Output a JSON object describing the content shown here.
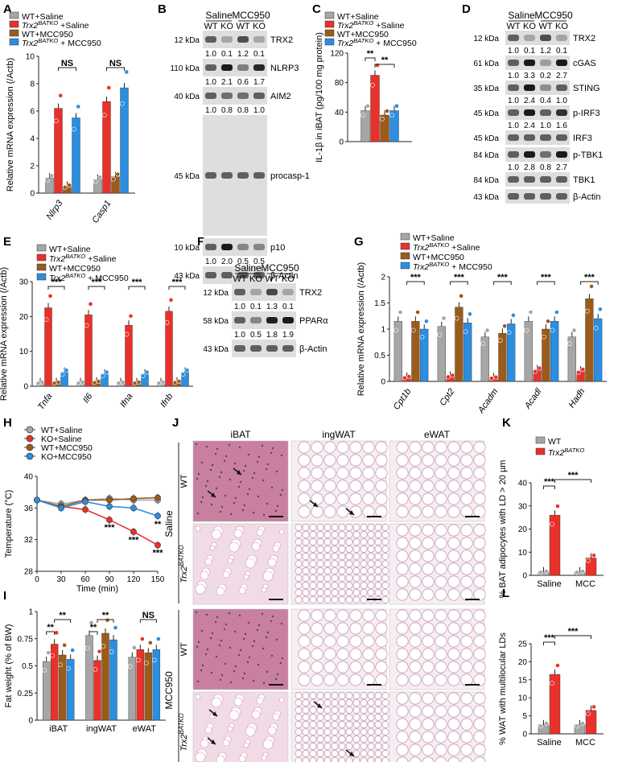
{
  "panel_letters": [
    "A",
    "B",
    "C",
    "D",
    "E",
    "F",
    "G",
    "H",
    "I",
    "J",
    "K",
    "L"
  ],
  "colors": {
    "wt_saline": "#a6a6a6",
    "ko_saline": "#e8312a",
    "wt_mcc": "#9a5b1c",
    "ko_mcc": "#2b8ee0",
    "he_pink": "#e9b4cf",
    "adipose": "#ecd6e4"
  },
  "legend4": [
    {
      "label": "WT+Saline",
      "color": "#a6a6a6"
    },
    {
      "label": "Trx2BATKO +Saline",
      "color": "#e8312a"
    },
    {
      "label": "WT+MCC950",
      "color": "#9a5b1c"
    },
    {
      "label": "Trx2BATKO + MCC950",
      "color": "#2b8ee0"
    }
  ],
  "legendH": [
    {
      "label": "WT+Saline",
      "color": "#a6a6a6"
    },
    {
      "label": "KO+Saline",
      "color": "#e8312a"
    },
    {
      "label": "WT+MCC950",
      "color": "#9a5b1c"
    },
    {
      "label": "KO+MCC950",
      "color": "#2b8ee0"
    }
  ],
  "legendK": [
    {
      "label": "WT",
      "color": "#a6a6a6"
    },
    {
      "label": "Trx2BATKO",
      "color": "#e8312a"
    }
  ],
  "blotB": {
    "header": {
      "saline": "Saline",
      "mcc": "MCC950",
      "lanes": [
        "WT",
        "KO",
        "WT",
        "KO"
      ]
    },
    "rows": [
      {
        "kda": "12 kDa",
        "name": "TRX2",
        "quant": [
          "1.0",
          "0.1",
          "1.2",
          "0.1"
        ]
      },
      {
        "kda": "110 kDa",
        "name": "NLRP3",
        "quant": [
          "1.0",
          "2.1",
          "0.6",
          "1.7"
        ]
      },
      {
        "kda": "40 kDa",
        "name": "AIM2",
        "quant": [
          "1.0",
          "0.8",
          "0.8",
          "1.0"
        ]
      },
      {
        "kda": "45 kDa",
        "name": "procasp-1",
        "quant": []
      },
      {
        "kda": "10 kDa",
        "name": "p10",
        "quant": [
          "1.0",
          "2.0",
          "0.5",
          "0.5"
        ]
      },
      {
        "kda": "43 kDa",
        "name": "β-Actin",
        "quant": []
      }
    ]
  },
  "blotD": {
    "header": {
      "saline": "Saline",
      "mcc": "MCC950",
      "lanes": [
        "WT",
        "KO",
        "WT",
        "KO"
      ]
    },
    "rows": [
      {
        "kda": "12 kDa",
        "name": "TRX2",
        "quant": [
          "1.0",
          "0.1",
          "1.2",
          "0.1"
        ]
      },
      {
        "kda": "61 kDa",
        "name": "cGAS",
        "quant": [
          "1.0",
          "3.3",
          "0.2",
          "2.7"
        ]
      },
      {
        "kda": "35 kDa",
        "name": "STING",
        "quant": [
          "1.0",
          "2.4",
          "0.4",
          "1.0"
        ]
      },
      {
        "kda": "45 kDa",
        "name": "p-IRF3",
        "quant": [
          "1.0",
          "2.4",
          "1.0",
          "1.6"
        ]
      },
      {
        "kda": "45 kDa",
        "name": "IRF3",
        "quant": []
      },
      {
        "kda": "84 kDa",
        "name": "p-TBK1",
        "quant": [
          "1.0",
          "2.8",
          "0.8",
          "2.7"
        ]
      },
      {
        "kda": "84 kDa",
        "name": "TBK1",
        "quant": []
      },
      {
        "kda": "43 kDa",
        "name": "β-Actin",
        "quant": []
      }
    ]
  },
  "blotF": {
    "header": {
      "saline": "Saline",
      "mcc": "MCC950",
      "lanes": [
        "WT",
        "KO",
        "WT",
        "KO"
      ]
    },
    "rows": [
      {
        "kda": "12 kDa",
        "name": "TRX2",
        "quant": [
          "1.0",
          "0.1",
          "1.3",
          "0.1"
        ]
      },
      {
        "kda": "58 kDa",
        "name": "PPARα",
        "quant": [
          "1.0",
          "0.5",
          "1.8",
          "1.9"
        ]
      },
      {
        "kda": "43 kDa",
        "name": "β-Actin",
        "quant": []
      }
    ]
  },
  "histology": {
    "cols": [
      "iBAT",
      "ingWAT",
      "eWAT"
    ],
    "groups": [
      "Saline",
      "MCC950"
    ],
    "rows": [
      "WT",
      "Trx2BATKO",
      "WT",
      "Trx2BATKO"
    ]
  },
  "chart_data": [
    {
      "panel": "A",
      "type": "bar",
      "ylabel": "Relative mRNA expression (/Actb)",
      "ylim": [
        0,
        10
      ],
      "yticks": [
        0,
        2,
        4,
        6,
        8,
        10
      ],
      "categories": [
        "Nlrp3",
        "Casp1"
      ],
      "series": [
        {
          "name": "WT+Saline",
          "values": [
            1.1,
            1.0
          ]
        },
        {
          "name": "Trx2BATKO +Saline",
          "values": [
            6.2,
            6.7
          ]
        },
        {
          "name": "WT+MCC950",
          "values": [
            0.5,
            1.2
          ]
        },
        {
          "name": "Trx2BATKO + MCC950",
          "values": [
            5.5,
            7.7
          ]
        }
      ],
      "annotations": [
        "NS",
        "NS"
      ]
    },
    {
      "panel": "C",
      "type": "bar",
      "ylabel": "IL-1β in iBAT (pg/100 mg protein)",
      "ylim": [
        0,
        120
      ],
      "yticks": [
        0,
        40,
        80,
        120
      ],
      "categories": [
        ""
      ],
      "series": [
        {
          "name": "WT+Saline",
          "values": [
            42
          ]
        },
        {
          "name": "Trx2BATKO+Saline",
          "values": [
            90
          ]
        },
        {
          "name": "WT+MCC950",
          "values": [
            36
          ]
        },
        {
          "name": "Trx2BATKO+MCC950",
          "values": [
            42
          ]
        }
      ],
      "annotations": [
        "**",
        "**"
      ]
    },
    {
      "panel": "E",
      "type": "bar",
      "ylabel": "Relative mRNA expression (/Actb)",
      "ylim": [
        0,
        30
      ],
      "yticks": [
        0,
        10,
        20,
        30
      ],
      "categories": [
        "Tnfa",
        "Il6",
        "Ifna",
        "Ifnb"
      ],
      "series": [
        {
          "name": "WT+Saline",
          "values": [
            1.0,
            1.0,
            1.0,
            1.0
          ]
        },
        {
          "name": "Trx2BATKO+Saline",
          "values": [
            22.5,
            20.5,
            17.5,
            21.5
          ]
        },
        {
          "name": "WT+MCC950",
          "values": [
            1.0,
            1.2,
            1.0,
            1.2
          ]
        },
        {
          "name": "Trx2BATKO+MCC950",
          "values": [
            4.0,
            3.5,
            3.5,
            4.0
          ]
        }
      ],
      "annotations": [
        "***",
        "***",
        "***",
        "***"
      ]
    },
    {
      "panel": "G",
      "type": "bar",
      "ylabel": "Relative mRNA expression (/Actb)",
      "ylim": [
        0,
        2.0
      ],
      "yticks": [
        0,
        0.5,
        1.0,
        1.5,
        2.0
      ],
      "categories": [
        "Cpt1b",
        "Cpt2",
        "Acadm",
        "Acadl",
        "Hadh"
      ],
      "series": [
        {
          "name": "WT+Saline",
          "values": [
            1.15,
            1.05,
            0.85,
            1.15,
            0.85
          ]
        },
        {
          "name": "Trx2BATKO+Saline",
          "values": [
            0.08,
            0.1,
            0.07,
            0.22,
            0.2
          ]
        },
        {
          "name": "WT+MCC950",
          "values": [
            1.15,
            1.42,
            0.92,
            1.0,
            1.58
          ]
        },
        {
          "name": "Trx2BATKO+MCC950",
          "values": [
            1.0,
            1.12,
            1.1,
            1.15,
            1.2
          ]
        }
      ],
      "annotations": [
        "***",
        "***",
        "***",
        "***",
        "***"
      ]
    },
    {
      "panel": "H",
      "type": "line",
      "xlabel": "Time (min)",
      "ylabel": "Temperature (°C)",
      "xlim": [
        0,
        150
      ],
      "ylim": [
        28,
        40
      ],
      "xticks": [
        0,
        30,
        60,
        90,
        120,
        150
      ],
      "yticks": [
        28,
        32,
        36,
        40
      ],
      "x": [
        0,
        30,
        60,
        90,
        120,
        150
      ],
      "series": [
        {
          "name": "WT+Saline",
          "values": [
            37.0,
            36.5,
            37.0,
            37.2,
            37.0,
            37.0
          ]
        },
        {
          "name": "KO+Saline",
          "values": [
            37.0,
            36.2,
            35.8,
            34.5,
            33.0,
            31.3
          ]
        },
        {
          "name": "WT+MCC950",
          "values": [
            37.0,
            36.2,
            37.0,
            37.0,
            37.2,
            37.3
          ]
        },
        {
          "name": "KO+MCC950",
          "values": [
            37.0,
            36.0,
            36.8,
            36.2,
            36.0,
            35.0
          ]
        }
      ],
      "annotations": [
        "***",
        "***",
        "***",
        "**"
      ]
    },
    {
      "panel": "I",
      "type": "bar",
      "ylabel": "Fat weight (% of BW)",
      "ylim": [
        0,
        1.0
      ],
      "yticks": [
        0,
        0.25,
        0.5,
        0.75,
        1.0
      ],
      "categories": [
        "iBAT",
        "ingWAT",
        "eWAT"
      ],
      "series": [
        {
          "name": "WT+Saline",
          "values": [
            0.54,
            0.78,
            0.58
          ]
        },
        {
          "name": "Trx2BATKO+Saline",
          "values": [
            0.7,
            0.55,
            0.65
          ]
        },
        {
          "name": "WT+MCC950",
          "values": [
            0.6,
            0.8,
            0.62
          ]
        },
        {
          "name": "Trx2BATKO+MCC950",
          "values": [
            0.56,
            0.74,
            0.65
          ]
        }
      ],
      "annotations": [
        "**",
        "**",
        "**",
        "**",
        "NS"
      ]
    },
    {
      "panel": "K",
      "type": "bar",
      "ylabel": "% BAT adipocytes with LD > 20 µm",
      "ylim": [
        0,
        40
      ],
      "yticks": [
        0,
        10,
        20,
        30,
        40
      ],
      "categories": [
        "Saline",
        "MCC"
      ],
      "series": [
        {
          "name": "WT",
          "values": [
            1.5,
            1.5
          ]
        },
        {
          "name": "Trx2BATKO",
          "values": [
            26,
            7.5
          ]
        }
      ],
      "annotations": [
        "***",
        "***"
      ]
    },
    {
      "panel": "L",
      "type": "bar",
      "ylabel": "% WAT with multilocular LDs",
      "ylim": [
        0,
        25
      ],
      "yticks": [
        0,
        5,
        10,
        15,
        20,
        25
      ],
      "categories": [
        "Saline",
        "MCC"
      ],
      "series": [
        {
          "name": "WT",
          "values": [
            2.5,
            2.5
          ]
        },
        {
          "name": "Trx2BATKO",
          "values": [
            16.5,
            6.5
          ]
        }
      ],
      "annotations": [
        "***",
        "***"
      ]
    }
  ]
}
